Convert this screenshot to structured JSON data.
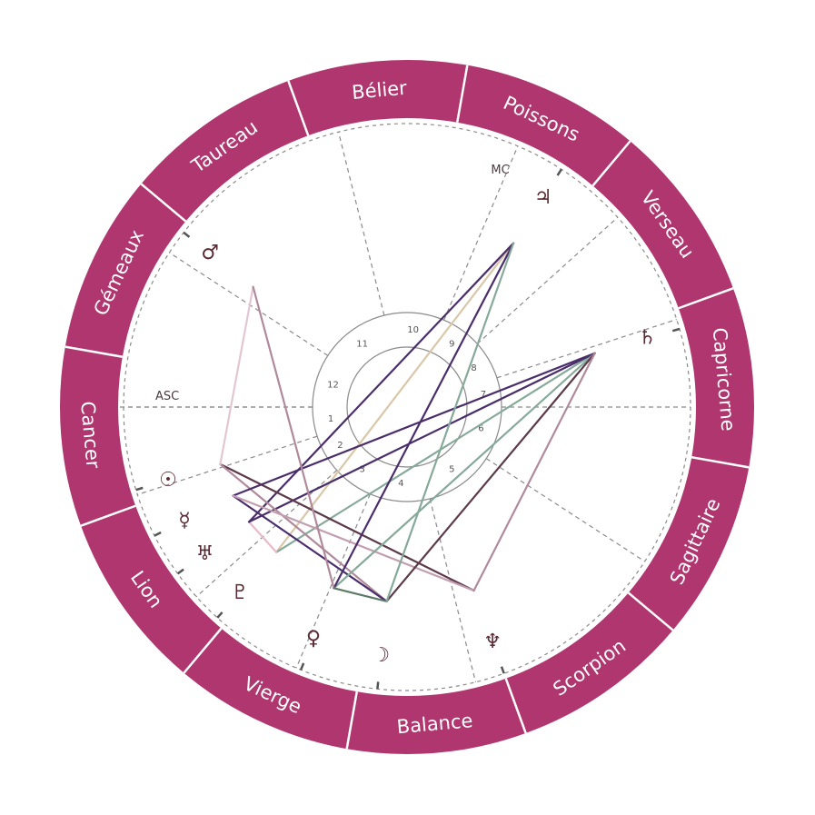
{
  "colors": {
    "ring": "#b0366f",
    "ring_divider": "#ffffff",
    "background": "#ffffff",
    "dashed": "#8a8a8a",
    "planet_glyph": "#5a2a34"
  },
  "zodiac_signs": [
    {
      "name": "Bélier",
      "start_deg": 80
    },
    {
      "name": "Taureau",
      "start_deg": 110
    },
    {
      "name": "Gémeaux",
      "start_deg": 140
    },
    {
      "name": "Cancer",
      "start_deg": 170
    },
    {
      "name": "Lion",
      "start_deg": 200
    },
    {
      "name": "Vierge",
      "start_deg": 230
    },
    {
      "name": "Balance",
      "start_deg": 260
    },
    {
      "name": "Scorpion",
      "start_deg": 290
    },
    {
      "name": "Sagittaire",
      "start_deg": 320
    },
    {
      "name": "Capricorne",
      "start_deg": 350
    },
    {
      "name": "Verseau",
      "start_deg": 20
    },
    {
      "name": "Poissons",
      "start_deg": 50
    }
  ],
  "angles": {
    "asc": {
      "label": "ASC",
      "deg": 180
    },
    "mc": {
      "label": "MC",
      "deg": 67
    }
  },
  "houses": [
    {
      "number": "1",
      "cusp_deg": 180
    },
    {
      "number": "2",
      "cusp_deg": 198
    },
    {
      "number": "3",
      "cusp_deg": 222
    },
    {
      "number": "4",
      "cusp_deg": 247
    },
    {
      "number": "5",
      "cusp_deg": 284
    },
    {
      "number": "6",
      "cusp_deg": 327
    },
    {
      "number": "7",
      "cusp_deg": 0
    },
    {
      "number": "8",
      "cusp_deg": 18
    },
    {
      "number": "9",
      "cusp_deg": 42
    },
    {
      "number": "10",
      "cusp_deg": 67
    },
    {
      "number": "11",
      "cusp_deg": 104
    },
    {
      "number": "12",
      "cusp_deg": 147
    }
  ],
  "planets": [
    {
      "name": "sun",
      "glyph": "☉",
      "deg": 197
    },
    {
      "name": "mercury",
      "glyph": "☿",
      "deg": 207
    },
    {
      "name": "uranus",
      "glyph": "♅",
      "deg": 216
    },
    {
      "name": "pluto",
      "glyph": "♇",
      "deg": 228
    },
    {
      "name": "venus",
      "glyph": "♀",
      "deg": 248
    },
    {
      "name": "moon",
      "glyph": "☽",
      "deg": 264
    },
    {
      "name": "neptune",
      "glyph": "♆",
      "deg": 290
    },
    {
      "name": "saturn",
      "glyph": "♄",
      "deg": 16
    },
    {
      "name": "jupiter",
      "glyph": "♃",
      "deg": 57
    },
    {
      "name": "mars",
      "glyph": "♂",
      "deg": 142
    }
  ],
  "aspects": [
    {
      "from": "pluto",
      "to": "jupiter",
      "color": "#d9c7a8"
    },
    {
      "from": "pluto",
      "to": "saturn",
      "color": "#86a99a"
    },
    {
      "from": "pluto",
      "to": "uranus",
      "color": "#e8b9c9"
    },
    {
      "from": "uranus",
      "to": "saturn",
      "color": "#4a2e6b"
    },
    {
      "from": "uranus",
      "to": "jupiter",
      "color": "#4a2e6b"
    },
    {
      "from": "sun",
      "to": "neptune",
      "color": "#5c3a4a"
    },
    {
      "from": "sun",
      "to": "moon",
      "color": "#b08a9b"
    },
    {
      "from": "sun",
      "to": "mars",
      "color": "#e2c6d2"
    },
    {
      "from": "mercury",
      "to": "moon",
      "color": "#4a2e6b"
    },
    {
      "from": "mercury",
      "to": "saturn",
      "color": "#4a2e6b"
    },
    {
      "from": "mercury",
      "to": "neptune",
      "color": "#c29fb0"
    },
    {
      "from": "venus",
      "to": "saturn",
      "color": "#86a99a"
    },
    {
      "from": "venus",
      "to": "jupiter",
      "color": "#4a2e6b"
    },
    {
      "from": "venus",
      "to": "mars",
      "color": "#b08a9b"
    },
    {
      "from": "venus",
      "to": "moon",
      "color": "#5c7a66"
    },
    {
      "from": "moon",
      "to": "saturn",
      "color": "#5c3a4a"
    },
    {
      "from": "moon",
      "to": "jupiter",
      "color": "#86a99a"
    },
    {
      "from": "neptune",
      "to": "saturn",
      "color": "#b08a9b"
    }
  ]
}
